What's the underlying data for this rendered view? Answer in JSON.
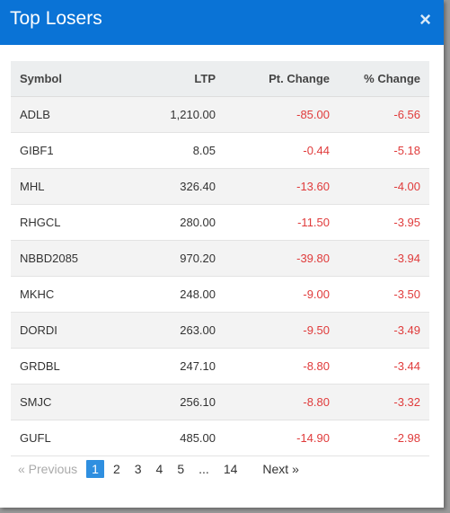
{
  "modal": {
    "title": "Top Losers",
    "close_glyph": "×"
  },
  "table": {
    "headers": {
      "symbol": "Symbol",
      "ltp": "LTP",
      "pt_change": "Pt. Change",
      "pct_change": "% Change"
    },
    "rows": [
      {
        "symbol": "ADLB",
        "ltp": "1,210.00",
        "pt_change": "-85.00",
        "pct_change": "-6.56"
      },
      {
        "symbol": "GIBF1",
        "ltp": "8.05",
        "pt_change": "-0.44",
        "pct_change": "-5.18"
      },
      {
        "symbol": "MHL",
        "ltp": "326.40",
        "pt_change": "-13.60",
        "pct_change": "-4.00"
      },
      {
        "symbol": "RHGCL",
        "ltp": "280.00",
        "pt_change": "-11.50",
        "pct_change": "-3.95"
      },
      {
        "symbol": "NBBD2085",
        "ltp": "970.20",
        "pt_change": "-39.80",
        "pct_change": "-3.94"
      },
      {
        "symbol": "MKHC",
        "ltp": "248.00",
        "pt_change": "-9.00",
        "pct_change": "-3.50"
      },
      {
        "symbol": "DORDI",
        "ltp": "263.00",
        "pt_change": "-9.50",
        "pct_change": "-3.49"
      },
      {
        "symbol": "GRDBL",
        "ltp": "247.10",
        "pt_change": "-8.80",
        "pct_change": "-3.44"
      },
      {
        "symbol": "SMJC",
        "ltp": "256.10",
        "pt_change": "-8.80",
        "pct_change": "-3.32"
      },
      {
        "symbol": "GUFL",
        "ltp": "485.00",
        "pt_change": "-14.90",
        "pct_change": "-2.98"
      }
    ]
  },
  "pagination": {
    "prev_label": "« Previous",
    "pages": [
      "1",
      "2",
      "3",
      "4",
      "5",
      "...",
      "14"
    ],
    "current": "1",
    "next_label": "Next »"
  },
  "colors": {
    "header": "#0a73d6",
    "negative": "#e03b3b",
    "active_page": "#2f8fe0"
  }
}
